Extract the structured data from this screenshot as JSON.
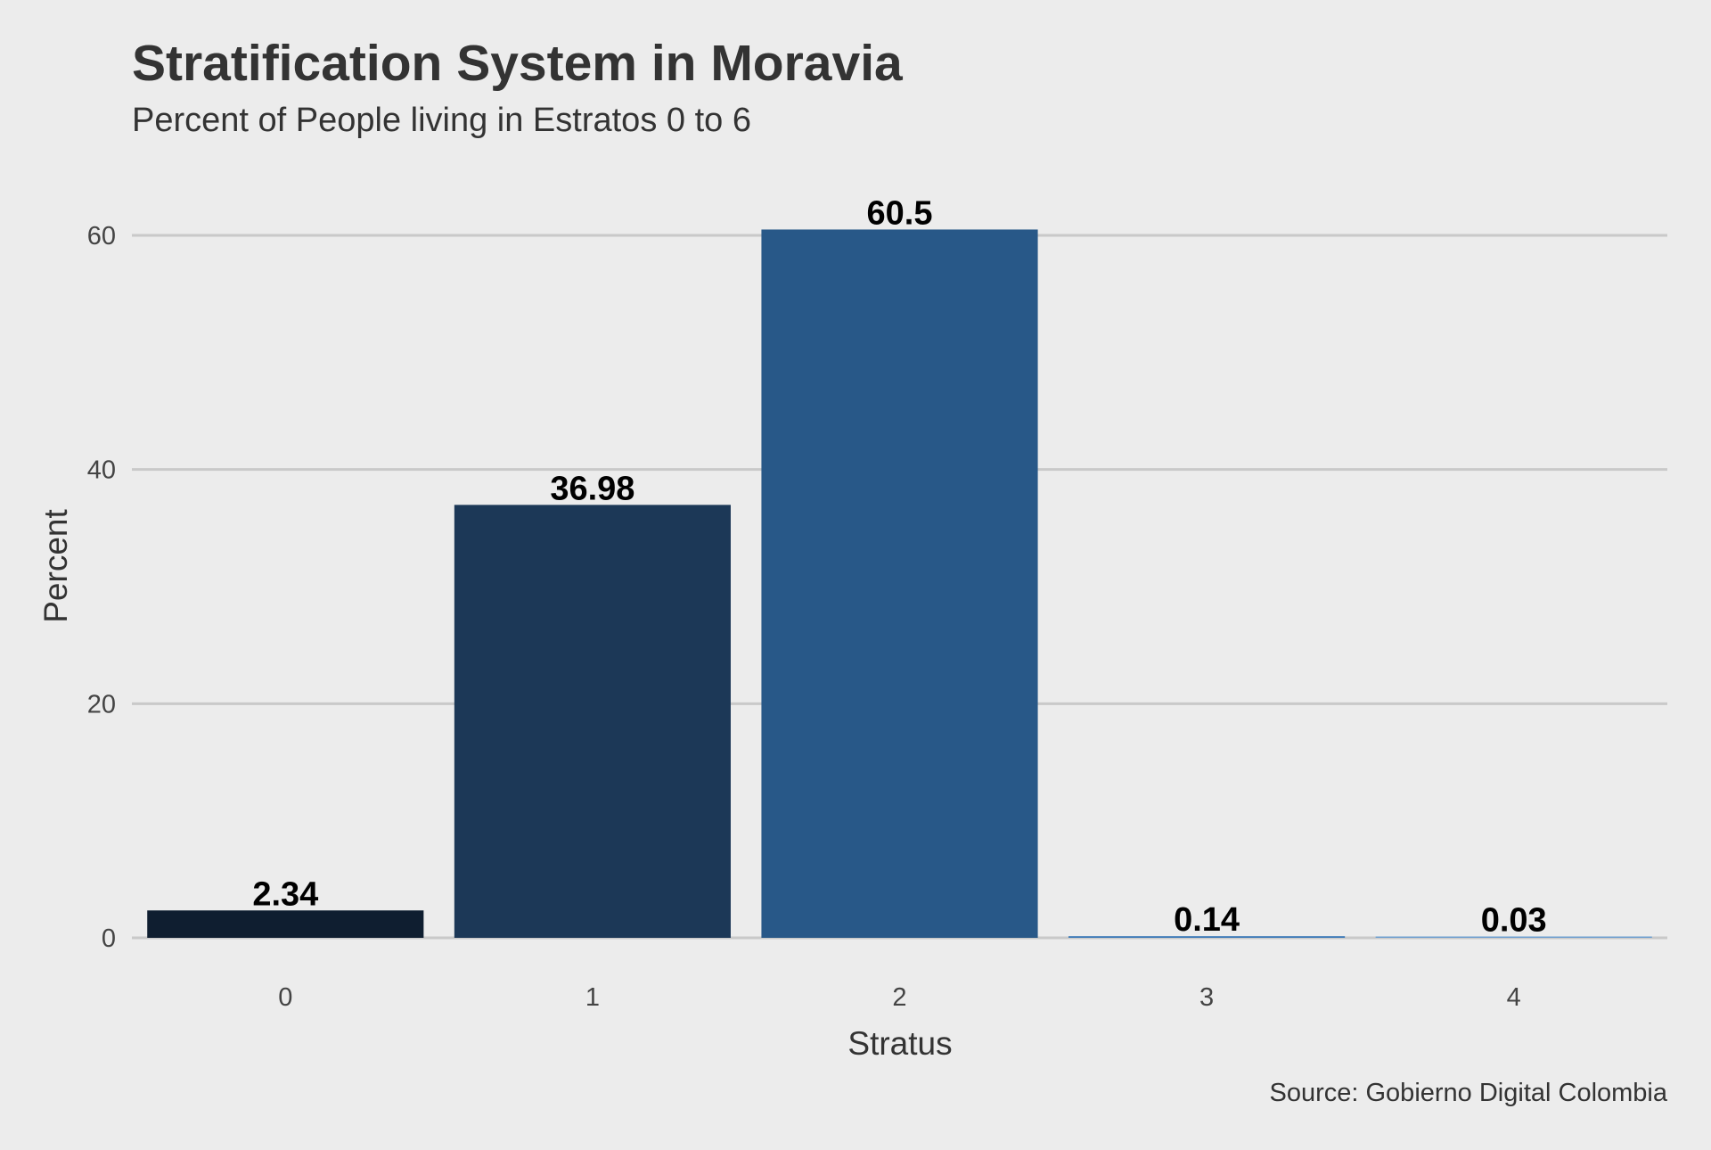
{
  "chart_data": {
    "type": "bar",
    "title": "Stratification System in Moravia",
    "subtitle": "Percent of People living in Estratos 0 to 6",
    "xlabel": "Stratus",
    "ylabel": "Percent",
    "caption": "Source: Gobierno Digital Colombia",
    "categories": [
      "0",
      "1",
      "2",
      "3",
      "4"
    ],
    "values": [
      2.34,
      36.98,
      60.5,
      0.14,
      0.03
    ],
    "data_labels": [
      "2.34",
      "36.98",
      "60.5",
      "0.14",
      "0.03"
    ],
    "colors": [
      "#0f1e30",
      "#1c3857",
      "#285888",
      "#3d7ab8",
      "#6e9fd0"
    ],
    "ylim": [
      0,
      63.2
    ],
    "yticks": [
      0,
      20,
      40,
      60
    ],
    "ytick_labels": [
      "0",
      "20",
      "40",
      "60"
    ],
    "grid": true,
    "legend": "none"
  }
}
